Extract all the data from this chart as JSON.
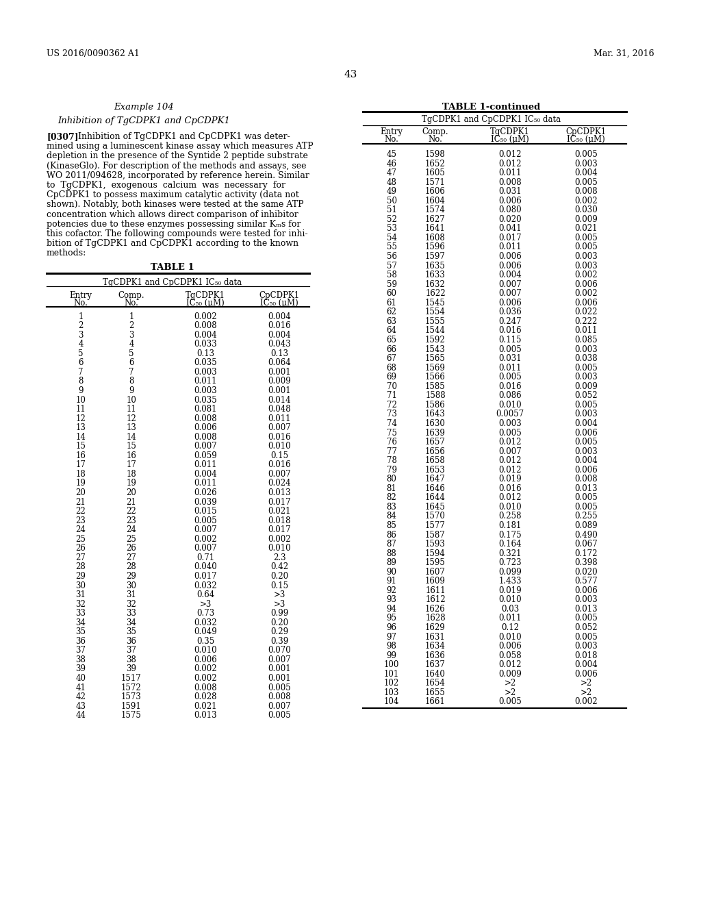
{
  "patent_left": "US 2016/0090362 A1",
  "patent_right": "Mar. 31, 2016",
  "page_number": "43",
  "left_title": "Example 104",
  "left_subtitle": "Inhibition of TgCDPK1 and CpCDPK1",
  "table1_title": "TABLE 1",
  "table1_subtitle": "TgCDPK1 and CpCDPK1 IC₅₀ data",
  "table1_data": [
    [
      1,
      1,
      "0.002",
      "0.004"
    ],
    [
      2,
      2,
      "0.008",
      "0.016"
    ],
    [
      3,
      3,
      "0.004",
      "0.004"
    ],
    [
      4,
      4,
      "0.033",
      "0.043"
    ],
    [
      5,
      5,
      "0.13",
      "0.13"
    ],
    [
      6,
      6,
      "0.035",
      "0.064"
    ],
    [
      7,
      7,
      "0.003",
      "0.001"
    ],
    [
      8,
      8,
      "0.011",
      "0.009"
    ],
    [
      9,
      9,
      "0.003",
      "0.001"
    ],
    [
      10,
      10,
      "0.035",
      "0.014"
    ],
    [
      11,
      11,
      "0.081",
      "0.048"
    ],
    [
      12,
      12,
      "0.008",
      "0.011"
    ],
    [
      13,
      13,
      "0.006",
      "0.007"
    ],
    [
      14,
      14,
      "0.008",
      "0.016"
    ],
    [
      15,
      15,
      "0.007",
      "0.010"
    ],
    [
      16,
      16,
      "0.059",
      "0.15"
    ],
    [
      17,
      17,
      "0.011",
      "0.016"
    ],
    [
      18,
      18,
      "0.004",
      "0.007"
    ],
    [
      19,
      19,
      "0.011",
      "0.024"
    ],
    [
      20,
      20,
      "0.026",
      "0.013"
    ],
    [
      21,
      21,
      "0.039",
      "0.017"
    ],
    [
      22,
      22,
      "0.015",
      "0.021"
    ],
    [
      23,
      23,
      "0.005",
      "0.018"
    ],
    [
      24,
      24,
      "0.007",
      "0.017"
    ],
    [
      25,
      25,
      "0.002",
      "0.002"
    ],
    [
      26,
      26,
      "0.007",
      "0.010"
    ],
    [
      27,
      27,
      "0.71",
      "2.3"
    ],
    [
      28,
      28,
      "0.040",
      "0.42"
    ],
    [
      29,
      29,
      "0.017",
      "0.20"
    ],
    [
      30,
      30,
      "0.032",
      "0.15"
    ],
    [
      31,
      31,
      "0.64",
      ">3"
    ],
    [
      32,
      32,
      ">3",
      ">3"
    ],
    [
      33,
      33,
      "0.73",
      "0.99"
    ],
    [
      34,
      34,
      "0.032",
      "0.20"
    ],
    [
      35,
      35,
      "0.049",
      "0.29"
    ],
    [
      36,
      36,
      "0.35",
      "0.39"
    ],
    [
      37,
      37,
      "0.010",
      "0.070"
    ],
    [
      38,
      38,
      "0.006",
      "0.007"
    ],
    [
      39,
      39,
      "0.002",
      "0.001"
    ],
    [
      40,
      1517,
      "0.002",
      "0.001"
    ],
    [
      41,
      1572,
      "0.008",
      "0.005"
    ],
    [
      42,
      1573,
      "0.028",
      "0.008"
    ],
    [
      43,
      1591,
      "0.021",
      "0.007"
    ],
    [
      44,
      1575,
      "0.013",
      "0.005"
    ]
  ],
  "right_title": "TABLE 1-continued",
  "right_subtitle": "TgCDPK1 and CpCDPK1 IC₅₀ data",
  "right_data": [
    [
      45,
      1598,
      "0.012",
      "0.005"
    ],
    [
      46,
      1652,
      "0.012",
      "0.003"
    ],
    [
      47,
      1605,
      "0.011",
      "0.004"
    ],
    [
      48,
      1571,
      "0.008",
      "0.005"
    ],
    [
      49,
      1606,
      "0.031",
      "0.008"
    ],
    [
      50,
      1604,
      "0.006",
      "0.002"
    ],
    [
      51,
      1574,
      "0.080",
      "0.030"
    ],
    [
      52,
      1627,
      "0.020",
      "0.009"
    ],
    [
      53,
      1641,
      "0.041",
      "0.021"
    ],
    [
      54,
      1608,
      "0.017",
      "0.005"
    ],
    [
      55,
      1596,
      "0.011",
      "0.005"
    ],
    [
      56,
      1597,
      "0.006",
      "0.003"
    ],
    [
      57,
      1635,
      "0.006",
      "0.003"
    ],
    [
      58,
      1633,
      "0.004",
      "0.002"
    ],
    [
      59,
      1632,
      "0.007",
      "0.006"
    ],
    [
      60,
      1622,
      "0.007",
      "0.002"
    ],
    [
      61,
      1545,
      "0.006",
      "0.006"
    ],
    [
      62,
      1554,
      "0.036",
      "0.022"
    ],
    [
      63,
      1555,
      "0.247",
      "0.222"
    ],
    [
      64,
      1544,
      "0.016",
      "0.011"
    ],
    [
      65,
      1592,
      "0.115",
      "0.085"
    ],
    [
      66,
      1543,
      "0.005",
      "0.003"
    ],
    [
      67,
      1565,
      "0.031",
      "0.038"
    ],
    [
      68,
      1569,
      "0.011",
      "0.005"
    ],
    [
      69,
      1566,
      "0.005",
      "0.003"
    ],
    [
      70,
      1585,
      "0.016",
      "0.009"
    ],
    [
      71,
      1588,
      "0.086",
      "0.052"
    ],
    [
      72,
      1586,
      "0.010",
      "0.005"
    ],
    [
      73,
      1643,
      "0.0057",
      "0.003"
    ],
    [
      74,
      1630,
      "0.003",
      "0.004"
    ],
    [
      75,
      1639,
      "0.005",
      "0.006"
    ],
    [
      76,
      1657,
      "0.012",
      "0.005"
    ],
    [
      77,
      1656,
      "0.007",
      "0.003"
    ],
    [
      78,
      1658,
      "0.012",
      "0.004"
    ],
    [
      79,
      1653,
      "0.012",
      "0.006"
    ],
    [
      80,
      1647,
      "0.019",
      "0.008"
    ],
    [
      81,
      1646,
      "0.016",
      "0.013"
    ],
    [
      82,
      1644,
      "0.012",
      "0.005"
    ],
    [
      83,
      1645,
      "0.010",
      "0.005"
    ],
    [
      84,
      1570,
      "0.258",
      "0.255"
    ],
    [
      85,
      1577,
      "0.181",
      "0.089"
    ],
    [
      86,
      1587,
      "0.175",
      "0.490"
    ],
    [
      87,
      1593,
      "0.164",
      "0.067"
    ],
    [
      88,
      1594,
      "0.321",
      "0.172"
    ],
    [
      89,
      1595,
      "0.723",
      "0.398"
    ],
    [
      90,
      1607,
      "0.099",
      "0.020"
    ],
    [
      91,
      1609,
      "1.433",
      "0.577"
    ],
    [
      92,
      1611,
      "0.019",
      "0.006"
    ],
    [
      93,
      1612,
      "0.010",
      "0.003"
    ],
    [
      94,
      1626,
      "0.03",
      "0.013"
    ],
    [
      95,
      1628,
      "0.011",
      "0.005"
    ],
    [
      96,
      1629,
      "0.12",
      "0.052"
    ],
    [
      97,
      1631,
      "0.010",
      "0.005"
    ],
    [
      98,
      1634,
      "0.006",
      "0.003"
    ],
    [
      99,
      1636,
      "0.058",
      "0.018"
    ],
    [
      100,
      1637,
      "0.012",
      "0.004"
    ],
    [
      101,
      1640,
      "0.009",
      "0.006"
    ],
    [
      102,
      1654,
      ">2",
      ">2"
    ],
    [
      103,
      1655,
      ">2",
      ">2"
    ],
    [
      104,
      1661,
      "0.005",
      "0.002"
    ]
  ],
  "para_lines": [
    [
      "bold",
      "[0307]",
      "  Inhibition of TgCDPK1 and CpCDPK1 was deter-"
    ],
    [
      "normal",
      "",
      "mined using a luminescent kinase assay which measures ATP"
    ],
    [
      "normal",
      "",
      "depletion in the presence of the Syntide 2 peptide substrate"
    ],
    [
      "normal",
      "",
      "(KinaseGlo). For description of the methods and assays, see"
    ],
    [
      "normal",
      "",
      "WO 2011/094628, incorporated by reference herein. Similar"
    ],
    [
      "normal",
      "",
      "to  TgCDPK1,  exogenous  calcium  was  necessary  for"
    ],
    [
      "normal",
      "",
      "CpCDPK1 to possess maximum catalytic activity (data not"
    ],
    [
      "normal",
      "",
      "shown). Notably, both kinases were tested at the same ATP"
    ],
    [
      "normal",
      "",
      "concentration which allows direct comparison of inhibitor"
    ],
    [
      "normal",
      "",
      "potencies due to these enzymes possessing similar Kₘs for"
    ],
    [
      "normal",
      "",
      "this cofactor. The following compounds were tested for inhi-"
    ],
    [
      "normal",
      "",
      "bition of TgCDPK1 and CpCDPK1 according to the known"
    ],
    [
      "normal",
      "",
      "methods:"
    ]
  ]
}
